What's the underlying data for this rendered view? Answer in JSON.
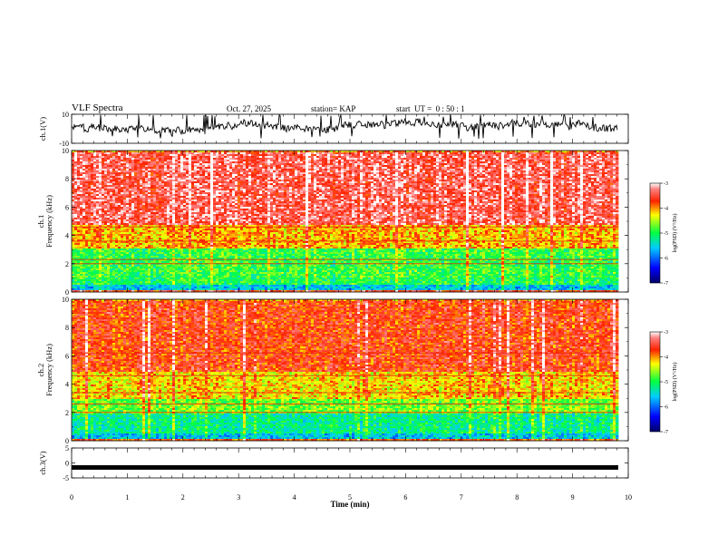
{
  "header": {
    "title": "VLF Spectra",
    "date": "Oct. 27, 2025",
    "station": "station= KAP",
    "start": "start  UT =  0 : 50 : 1"
  },
  "colorbar_label": "log(PSD) (V²/Hz)",
  "chart_data": [
    {
      "type": "line",
      "name": "ch1-waveform",
      "ylabel": "ch.1(V)",
      "ylim": [
        -10,
        10
      ],
      "yticks": [
        10,
        -10
      ],
      "xlim": [
        0,
        10
      ],
      "x_end": 9.82,
      "description_series": "noisy waveform oscillating roughly between -5 and 8 V"
    },
    {
      "type": "heatmap",
      "name": "ch1-spectrogram",
      "ylabel": "ch.1\nFrequency (kHz)",
      "ylim": [
        0,
        10
      ],
      "yticks": [
        0,
        2,
        4,
        6,
        8,
        10
      ],
      "xlim": [
        0,
        10
      ],
      "x_end": 9.82,
      "bands": [
        {
          "from": 0,
          "to": 0.15,
          "level": -3.6
        },
        {
          "from": 0.15,
          "to": 0.6,
          "level": -5.6
        },
        {
          "from": 0.6,
          "to": 1.1,
          "level": -5.0
        },
        {
          "from": 1.1,
          "to": 3.2,
          "level": -4.9
        },
        {
          "from": 3.2,
          "to": 4.8,
          "level": -4.1
        },
        {
          "from": 4.8,
          "to": 10,
          "level": -3.4
        }
      ],
      "lines_khz": [
        2.0,
        2.3,
        3.6,
        4.6
      ],
      "colorbar": {
        "min": -7,
        "max": -3,
        "ticks": [
          -3,
          -4,
          -5,
          -6,
          -7
        ]
      }
    },
    {
      "type": "heatmap",
      "name": "ch2-spectrogram",
      "ylabel": "ch.2\nFrequency (kHz)",
      "ylim": [
        0,
        10
      ],
      "yticks": [
        0,
        2,
        4,
        6,
        8,
        10
      ],
      "xlim": [
        0,
        10
      ],
      "x_end": 9.82,
      "bands": [
        {
          "from": 0,
          "to": 0.2,
          "level": -3.8
        },
        {
          "from": 0.2,
          "to": 0.6,
          "level": -5.6
        },
        {
          "from": 0.6,
          "to": 2.0,
          "level": -5.2
        },
        {
          "from": 2.0,
          "to": 3.0,
          "level": -4.7
        },
        {
          "from": 3.0,
          "to": 5.0,
          "level": -4.2
        },
        {
          "from": 5.0,
          "to": 10,
          "level": -3.7
        }
      ],
      "lines_khz": [
        2.0,
        2.6,
        3.4,
        4.6,
        6.2
      ],
      "colorbar": {
        "min": -7,
        "max": -3,
        "ticks": [
          -3,
          -4,
          -5,
          -6,
          -7
        ]
      }
    },
    {
      "type": "line",
      "name": "ch3-waveform",
      "ylabel": "ch.3(V)",
      "ylim": [
        -5,
        5
      ],
      "yticks": [
        5,
        0,
        -5
      ],
      "xlim": [
        0,
        10
      ],
      "x_end": 9.82,
      "value": -1.5,
      "xlabel": "Time (min)",
      "xticks": [
        0,
        1,
        2,
        3,
        4,
        5,
        6,
        7,
        8,
        9,
        10
      ]
    }
  ]
}
